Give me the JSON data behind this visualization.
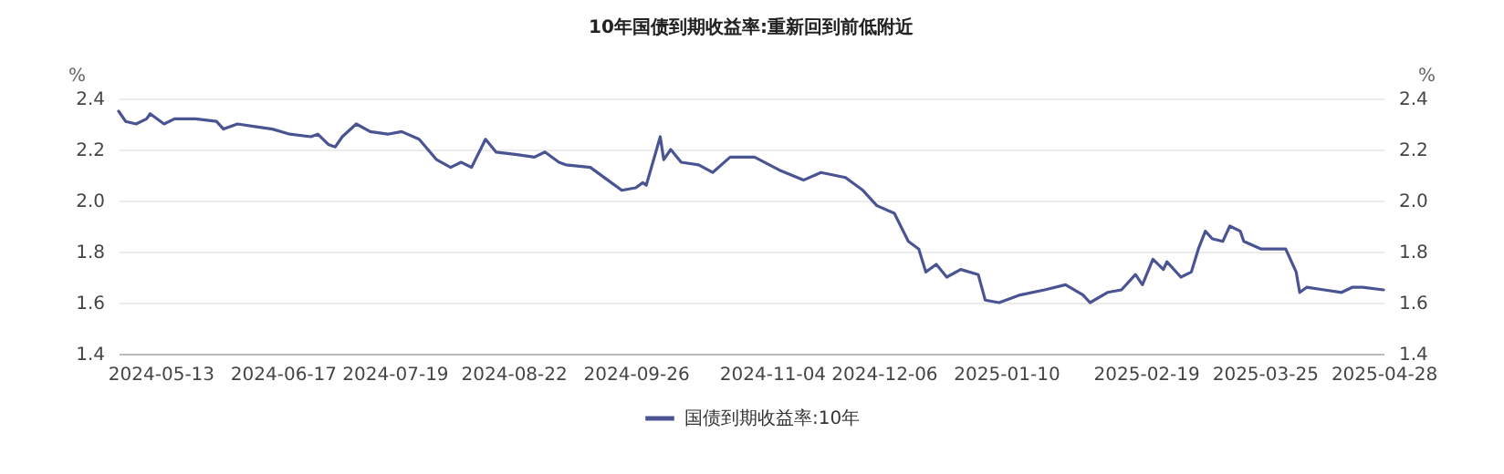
{
  "chart_data": {
    "type": "line",
    "title": "10年国债到期收益率:重新回到前低附近",
    "ylabel": "%",
    "y2label": "%",
    "x": [
      "2024-05-01",
      "2024-05-03",
      "2024-05-06",
      "2024-05-09",
      "2024-05-10",
      "2024-05-14",
      "2024-05-17",
      "2024-05-23",
      "2024-05-29",
      "2024-05-31",
      "2024-06-04",
      "2024-06-09",
      "2024-06-14",
      "2024-06-19",
      "2024-06-25",
      "2024-06-27",
      "2024-06-30",
      "2024-07-02",
      "2024-07-04",
      "2024-07-08",
      "2024-07-12",
      "2024-07-17",
      "2024-07-21",
      "2024-07-26",
      "2024-07-31",
      "2024-08-04",
      "2024-08-07",
      "2024-08-10",
      "2024-08-14",
      "2024-08-17",
      "2024-08-23",
      "2024-08-28",
      "2024-08-31",
      "2024-09-04",
      "2024-09-06",
      "2024-09-13",
      "2024-09-18",
      "2024-09-22",
      "2024-09-26",
      "2024-09-28",
      "2024-09-29",
      "2024-10-03",
      "2024-10-04",
      "2024-10-06",
      "2024-10-09",
      "2024-10-14",
      "2024-10-18",
      "2024-10-23",
      "2024-10-30",
      "2024-11-06",
      "2024-11-13",
      "2024-11-18",
      "2024-11-25",
      "2024-11-30",
      "2024-12-04",
      "2024-12-09",
      "2024-12-13",
      "2024-12-16",
      "2024-12-18",
      "2024-12-21",
      "2024-12-24",
      "2024-12-28",
      "2025-01-02",
      "2025-01-04",
      "2025-01-08",
      "2025-01-14",
      "2025-01-21",
      "2025-01-27",
      "2025-02-01",
      "2025-02-03",
      "2025-02-08",
      "2025-02-12",
      "2025-02-16",
      "2025-02-18",
      "2025-02-21",
      "2025-02-24",
      "2025-02-25",
      "2025-03-01",
      "2025-03-04",
      "2025-03-06",
      "2025-03-08",
      "2025-03-10",
      "2025-03-13",
      "2025-03-15",
      "2025-03-18",
      "2025-03-19",
      "2025-03-24",
      "2025-03-31",
      "2025-04-03",
      "2025-04-04",
      "2025-04-06",
      "2025-04-11",
      "2025-04-16",
      "2025-04-19",
      "2025-04-22",
      "2025-04-28"
    ],
    "series": [
      {
        "name": "国债到期收益率:10年",
        "color": "#4a5493",
        "values": [
          2.35,
          2.31,
          2.3,
          2.32,
          2.34,
          2.3,
          2.32,
          2.32,
          2.31,
          2.28,
          2.3,
          2.29,
          2.28,
          2.26,
          2.25,
          2.26,
          2.22,
          2.21,
          2.25,
          2.3,
          2.27,
          2.26,
          2.27,
          2.24,
          2.16,
          2.13,
          2.15,
          2.13,
          2.24,
          2.19,
          2.18,
          2.17,
          2.19,
          2.15,
          2.14,
          2.13,
          2.08,
          2.04,
          2.05,
          2.07,
          2.06,
          2.25,
          2.16,
          2.2,
          2.15,
          2.14,
          2.11,
          2.17,
          2.17,
          2.12,
          2.08,
          2.11,
          2.09,
          2.04,
          1.98,
          1.95,
          1.84,
          1.81,
          1.72,
          1.75,
          1.7,
          1.73,
          1.71,
          1.61,
          1.6,
          1.63,
          1.65,
          1.67,
          1.63,
          1.6,
          1.64,
          1.65,
          1.71,
          1.67,
          1.77,
          1.73,
          1.76,
          1.7,
          1.72,
          1.81,
          1.88,
          1.85,
          1.84,
          1.9,
          1.88,
          1.84,
          1.81,
          1.81,
          1.72,
          1.64,
          1.66,
          1.65,
          1.64,
          1.66,
          1.66,
          1.65
        ]
      }
    ],
    "xlim": [
      "2024-05-01",
      "2025-04-28"
    ],
    "xticks": [
      "2024-05-13",
      "2024-06-17",
      "2024-07-19",
      "2024-08-22",
      "2024-09-26",
      "2024-11-04",
      "2024-12-06",
      "2025-01-10",
      "2025-02-19",
      "2025-03-25",
      "2025-04-28"
    ],
    "ylim": [
      1.4,
      2.4
    ],
    "yticks": [
      1.4,
      1.6,
      1.8,
      {
        "value": 2,
        "label": "2.0"
      },
      2.2,
      2.4
    ],
    "y2lim": [
      1.4,
      2.4
    ],
    "y2ticks": [
      1.4,
      1.6,
      1.8,
      {
        "value": 2,
        "label": "2.0"
      },
      2.2,
      2.4
    ],
    "grid": "y",
    "legend": "bottom",
    "marker": "none",
    "line_style": "solid"
  }
}
